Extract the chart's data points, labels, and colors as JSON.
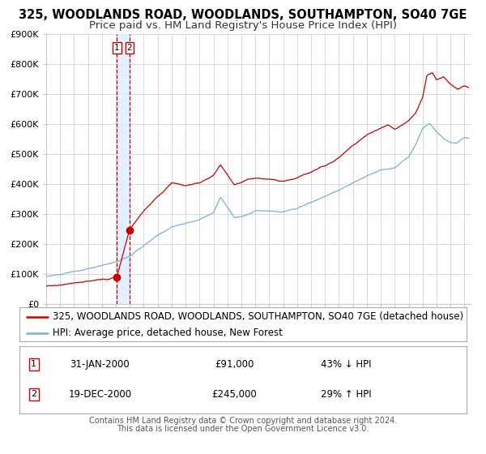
{
  "title": "325, WOODLANDS ROAD, WOODLANDS, SOUTHAMPTON, SO40 7GE",
  "subtitle": "Price paid vs. HM Land Registry's House Price Index (HPI)",
  "ylim": [
    0,
    900000
  ],
  "xlim_start": 1995.0,
  "xlim_end": 2025.5,
  "yticks": [
    0,
    100000,
    200000,
    300000,
    400000,
    500000,
    600000,
    700000,
    800000,
    900000
  ],
  "ytick_labels": [
    "£0",
    "£100K",
    "£200K",
    "£300K",
    "£400K",
    "£500K",
    "£600K",
    "£700K",
    "£800K",
    "£900K"
  ],
  "red_color": "#cc0000",
  "blue_color": "#7ab0d4",
  "shade_color": "#ddeeff",
  "transaction1_date": 2000.08,
  "transaction1_price": 91000,
  "transaction2_date": 2000.97,
  "transaction2_price": 245000,
  "legend_red_label": "325, WOODLANDS ROAD, WOODLANDS, SOUTHAMPTON, SO40 7GE (detached house)",
  "legend_blue_label": "HPI: Average price, detached house, New Forest",
  "table_rows": [
    {
      "num": "1",
      "date": "31-JAN-2000",
      "price": "£91,000",
      "hpi": "43% ↓ HPI"
    },
    {
      "num": "2",
      "date": "19-DEC-2000",
      "price": "£245,000",
      "hpi": "29% ↑ HPI"
    }
  ],
  "footer1": "Contains HM Land Registry data © Crown copyright and database right 2024.",
  "footer2": "This data is licensed under the Open Government Licence v3.0.",
  "background_color": "#ffffff",
  "grid_color": "#cccccc",
  "title_fontsize": 10.5,
  "subtitle_fontsize": 9.5,
  "tick_fontsize": 8,
  "legend_fontsize": 8.5,
  "table_fontsize": 8.5,
  "footer_fontsize": 7.0
}
